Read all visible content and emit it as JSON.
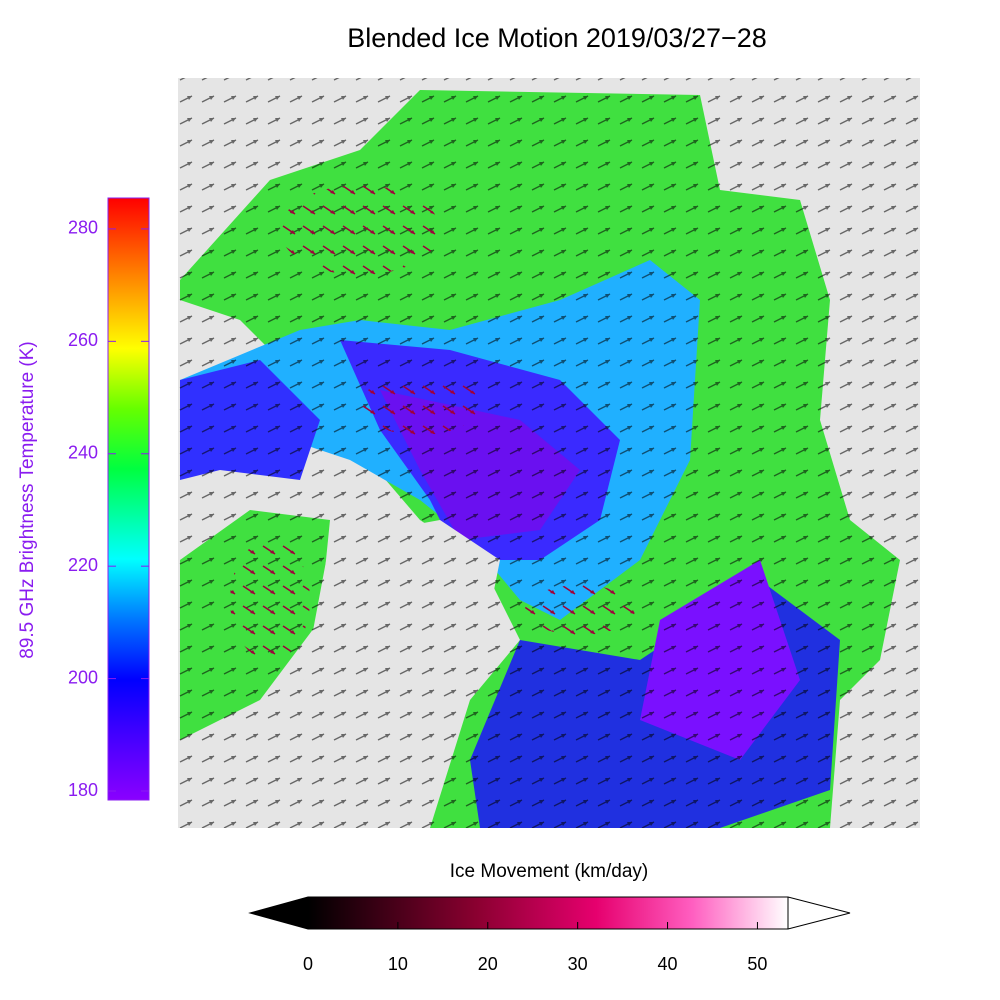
{
  "title": "Blended Ice Motion  2019/03/27−28",
  "temperature_colorbar": {
    "label": "89.5 GHz Brightness Temperature (K)",
    "range": [
      178.4,
      285.5
    ],
    "ticks": [
      180,
      200,
      220,
      240,
      260,
      280
    ]
  },
  "movement_colorbar": {
    "label": "Ice Movement (km/day)",
    "range": [
      0,
      53.4
    ],
    "ticks": [
      0,
      10,
      20,
      30,
      40,
      50
    ]
  }
}
